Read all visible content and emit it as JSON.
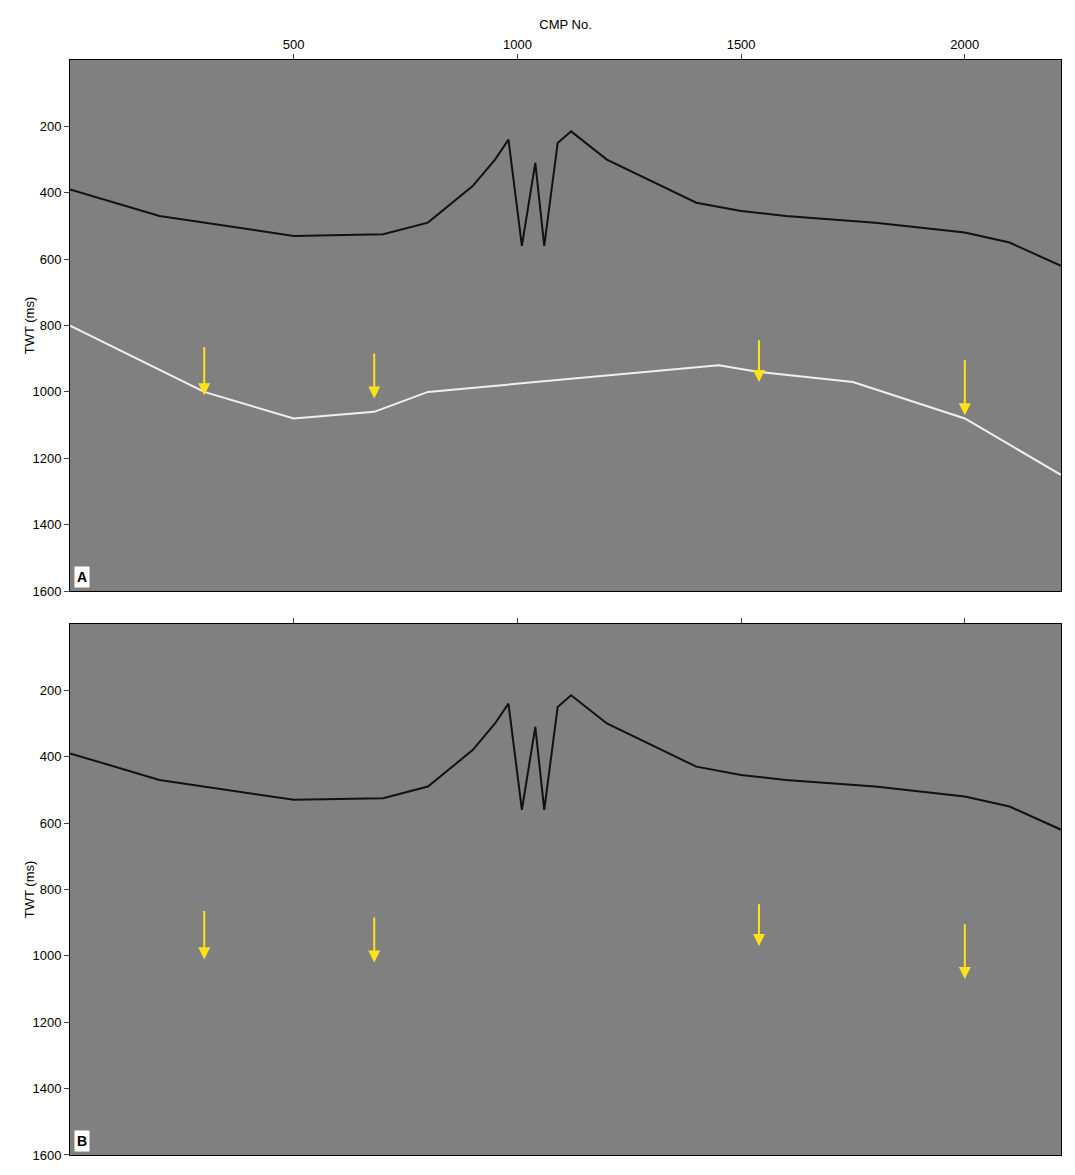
{
  "chart_data": [
    {
      "type": "line",
      "label": "A",
      "x_title": "CMP No.",
      "y_title": "TWT (ms)",
      "xlim": [
        0,
        2215
      ],
      "xticks": [
        500,
        1000,
        1500,
        2000
      ],
      "ylim": [
        1600,
        0
      ],
      "yticks": [
        200,
        400,
        600,
        800,
        1000,
        1200,
        1400,
        1600
      ],
      "tick_labels": true,
      "series": [
        {
          "color": "#111111",
          "x": [
            0,
            200,
            500,
            700,
            800,
            900,
            950,
            980,
            1010,
            1040,
            1060,
            1090,
            1120,
            1200,
            1400,
            1500,
            1600,
            1800,
            2000,
            2100,
            2215
          ],
          "values": [
            390,
            470,
            530,
            525,
            490,
            380,
            300,
            240,
            560,
            310,
            560,
            250,
            215,
            300,
            430,
            455,
            470,
            490,
            520,
            550,
            620
          ]
        },
        {
          "color": "#f0f0f0",
          "x": [
            0,
            150,
            300,
            500,
            680,
            800,
            1450,
            1540,
            1750,
            2000,
            2215
          ],
          "values": [
            800,
            900,
            1000,
            1080,
            1060,
            1000,
            920,
            940,
            970,
            1080,
            1250
          ]
        }
      ],
      "arrows": {
        "color": "#ffe21a",
        "items": [
          {
            "x": 300,
            "y_start": 860,
            "y_end": 1010
          },
          {
            "x": 680,
            "y_start": 880,
            "y_end": 1020
          },
          {
            "x": 1540,
            "y_start": 840,
            "y_end": 970
          },
          {
            "x": 2000,
            "y_start": 900,
            "y_end": 1070
          }
        ]
      }
    },
    {
      "type": "line",
      "label": "B",
      "y_title": "TWT (ms)",
      "xlim": [
        0,
        2215
      ],
      "xticks": [
        500,
        1000,
        1500,
        2000
      ],
      "ylim": [
        1600,
        0
      ],
      "yticks": [
        200,
        400,
        600,
        800,
        1000,
        1200,
        1400,
        1600
      ],
      "tick_labels": "y",
      "series": [
        {
          "color": "#111111",
          "x": [
            0,
            200,
            500,
            700,
            800,
            900,
            950,
            980,
            1010,
            1040,
            1060,
            1090,
            1120,
            1200,
            1400,
            1500,
            1600,
            1800,
            2000,
            2100,
            2215
          ],
          "values": [
            390,
            470,
            530,
            525,
            490,
            380,
            300,
            240,
            560,
            310,
            560,
            250,
            215,
            300,
            430,
            455,
            470,
            490,
            520,
            550,
            620
          ]
        }
      ],
      "arrows": {
        "color": "#ffe21a",
        "items": [
          {
            "x": 300,
            "y_start": 860,
            "y_end": 1010
          },
          {
            "x": 680,
            "y_start": 880,
            "y_end": 1020
          },
          {
            "x": 1540,
            "y_start": 840,
            "y_end": 970
          },
          {
            "x": 2000,
            "y_start": 900,
            "y_end": 1070
          }
        ]
      }
    }
  ]
}
